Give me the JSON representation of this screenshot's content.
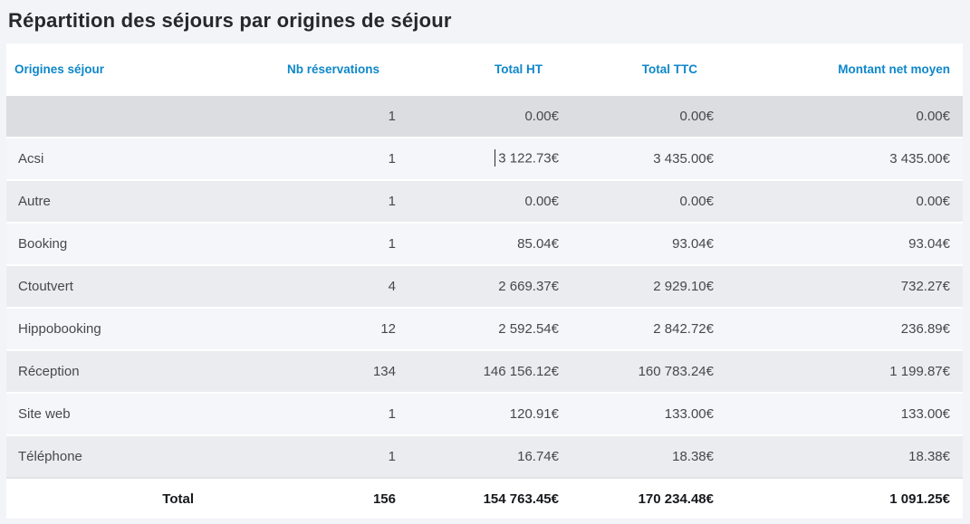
{
  "page": {
    "title": "Répartition des séjours par origines de séjour"
  },
  "colors": {
    "page_bg": "#f3f4f8",
    "card_bg": "#ffffff",
    "title_text": "#26282c",
    "header_text": "#0e87ca",
    "cell_text": "#46484d",
    "footer_text": "#17191d",
    "row_dark": "#dcdde0",
    "row_gray": "#ebecef",
    "row_light": "#f5f6f9"
  },
  "table": {
    "columns": [
      {
        "label": "Origines séjour",
        "align": "left"
      },
      {
        "label": "Nb réservations",
        "align": "right"
      },
      {
        "label": "Total HT",
        "align": "right"
      },
      {
        "label": "Total TTC",
        "align": "right"
      },
      {
        "label": "Montant net moyen",
        "align": "right"
      }
    ],
    "rows": [
      {
        "shade": "dark",
        "cells": [
          "",
          "1",
          "0.00€",
          "0.00€",
          "0.00€"
        ]
      },
      {
        "shade": "light",
        "caret_before_cell": 2,
        "cells": [
          "Acsi",
          "1",
          "3 122.73€",
          "3 435.00€",
          "3 435.00€"
        ]
      },
      {
        "shade": "gray",
        "cells": [
          "Autre",
          "1",
          "0.00€",
          "0.00€",
          "0.00€"
        ]
      },
      {
        "shade": "light",
        "cells": [
          "Booking",
          "1",
          "85.04€",
          "93.04€",
          "93.04€"
        ]
      },
      {
        "shade": "gray",
        "cells": [
          "Ctoutvert",
          "4",
          "2 669.37€",
          "2 929.10€",
          "732.27€"
        ]
      },
      {
        "shade": "light",
        "cells": [
          "Hippobooking",
          "12",
          "2 592.54€",
          "2 842.72€",
          "236.89€"
        ]
      },
      {
        "shade": "gray",
        "cells": [
          "Réception",
          "134",
          "146 156.12€",
          "160 783.24€",
          "1 199.87€"
        ]
      },
      {
        "shade": "light",
        "cells": [
          "Site web",
          "1",
          "120.91€",
          "133.00€",
          "133.00€"
        ]
      },
      {
        "shade": "gray",
        "cells": [
          "Téléphone",
          "1",
          "16.74€",
          "18.38€",
          "18.38€"
        ]
      }
    ],
    "footer": {
      "label": "Total",
      "cells": [
        "156",
        "154 763.45€",
        "170 234.48€",
        "1 091.25€"
      ]
    }
  }
}
